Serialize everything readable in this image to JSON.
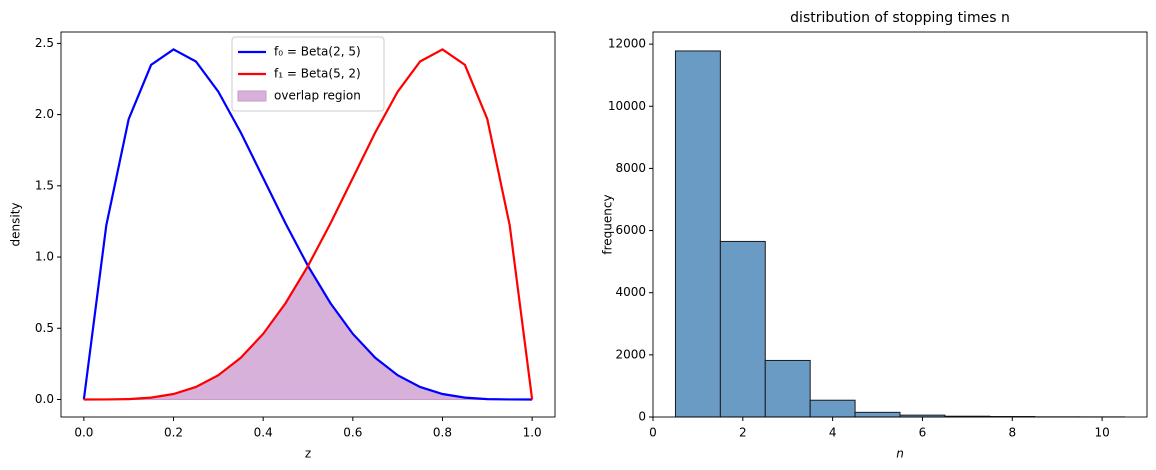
{
  "chart_data": [
    {
      "type": "line",
      "xlabel": "z",
      "ylabel": "density",
      "x": [
        0,
        0.05,
        0.1,
        0.15,
        0.2,
        0.25,
        0.3,
        0.35,
        0.4,
        0.45,
        0.5,
        0.55,
        0.6,
        0.65,
        0.7,
        0.75,
        0.8,
        0.85,
        0.9,
        0.95,
        1
      ],
      "series": [
        {
          "name": "f₀ = Beta(2, 5)",
          "color": "#0000ff",
          "values": [
            0,
            1.2218,
            1.9683,
            2.349,
            2.4576,
            2.373,
            2.1609,
            1.8743,
            1.5552,
            1.2353,
            0.9375,
            0.6766,
            0.4608,
            0.2926,
            0.1701,
            0.0879,
            0.0384,
            0.0129,
            0.0027,
            0.0002,
            0
          ]
        },
        {
          "name": "f₁ = Beta(5, 2)",
          "color": "#ff0000",
          "values": [
            0,
            0.0002,
            0.0027,
            0.0129,
            0.0384,
            0.0879,
            0.1701,
            0.2926,
            0.4608,
            0.6766,
            0.9375,
            1.2353,
            1.5552,
            1.8743,
            2.1609,
            2.373,
            2.4576,
            2.349,
            1.9683,
            1.2218,
            0
          ]
        }
      ],
      "area": {
        "name": "overlap region",
        "color": "#d8b1da",
        "values": [
          0,
          0.0002,
          0.0027,
          0.0129,
          0.0384,
          0.0879,
          0.1701,
          0.2926,
          0.4608,
          0.6766,
          0.9375,
          0.6766,
          0.4608,
          0.2926,
          0.1701,
          0.0879,
          0.0384,
          0.0129,
          0.0027,
          0.0002,
          0
        ]
      },
      "xlim": [
        -0.051,
        1.051
      ],
      "xticks": [
        {
          "value": 0,
          "label": "0.0"
        },
        0.2,
        0.4,
        0.6,
        0.8,
        {
          "value": 1,
          "label": "1.0"
        }
      ],
      "ylim": [
        -0.123,
        2.58
      ],
      "yticks": [
        {
          "value": 0,
          "label": "0.0"
        },
        0.5,
        {
          "value": 1,
          "label": "1.0"
        },
        1.5,
        {
          "value": 2,
          "label": "2.0"
        },
        2.5
      ],
      "legend": "upper center"
    },
    {
      "type": "histogram",
      "title": "distribution of stopping times n",
      "xlabel": "n",
      "ylabel": "frequency",
      "bins": [
        0.5,
        1.5,
        2.5,
        3.5,
        4.5,
        5.5,
        6.5,
        7.5,
        8.5,
        9.5,
        10.5
      ],
      "counts": [
        11780,
        5650,
        1820,
        540,
        150,
        60,
        25,
        15,
        5,
        3
      ],
      "color": "#6a9bc4",
      "xlim": [
        0,
        11
      ],
      "xticks": [
        0,
        2,
        4,
        6,
        8,
        10
      ],
      "ylim": [
        0,
        12390
      ],
      "yticks": [
        0,
        2000,
        4000,
        6000,
        8000,
        10000,
        12000
      ]
    }
  ]
}
